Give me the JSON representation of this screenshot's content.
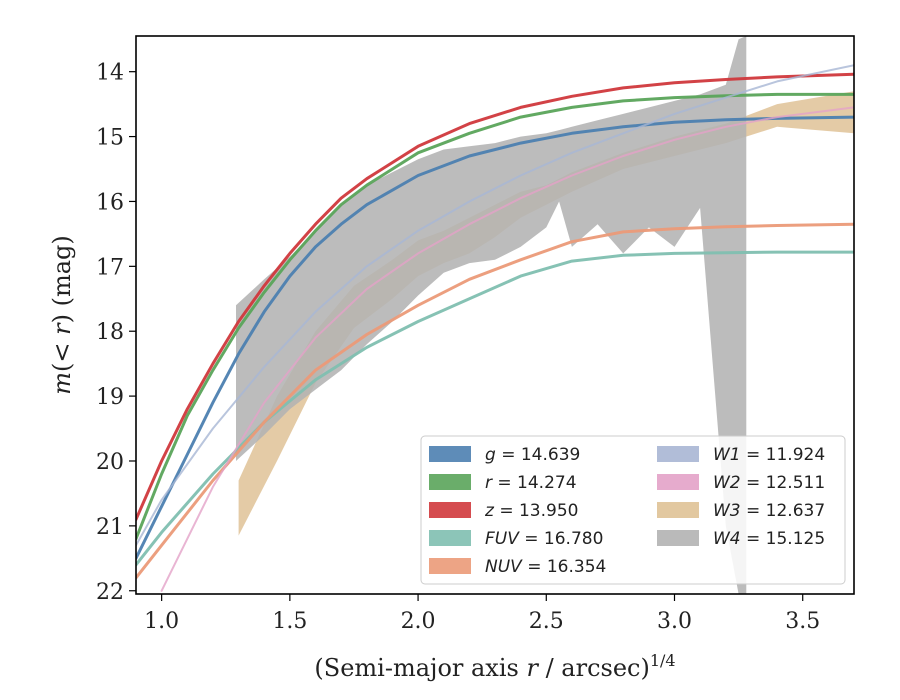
{
  "chart_data": {
    "type": "line",
    "xlabel": "(Semi-major axis r / arcsec)^1/4",
    "xlabel_parts": {
      "pre": "(Semi-major axis ",
      "var": "r",
      "post": " / arcsec)",
      "sup": "1/4"
    },
    "ylabel": "m(<r) (mag)",
    "ylabel_parts": {
      "m": "m",
      "rest": "(< ",
      "r": "r",
      "close": ") (mag)"
    },
    "xlim": [
      0.9,
      3.7
    ],
    "ylim": [
      22.05,
      13.45
    ],
    "y_inverted": true,
    "x_ticks": [
      "1.0",
      "1.5",
      "2.0",
      "2.5",
      "3.0",
      "3.5"
    ],
    "y_ticks": [
      "14",
      "15",
      "16",
      "17",
      "18",
      "19",
      "20",
      "21",
      "22"
    ],
    "grid": false,
    "legend_position": "lower-right",
    "series": [
      {
        "name": "g",
        "label_value": "14.639",
        "color": "#4c7fb0",
        "style": "line",
        "x": [
          0.9,
          1.0,
          1.1,
          1.2,
          1.3,
          1.4,
          1.5,
          1.6,
          1.7,
          1.8,
          2.0,
          2.2,
          2.4,
          2.6,
          2.8,
          3.0,
          3.2,
          3.4,
          3.7
        ],
        "y": [
          21.5,
          20.7,
          19.9,
          19.1,
          18.35,
          17.7,
          17.15,
          16.7,
          16.35,
          16.05,
          15.6,
          15.3,
          15.1,
          14.95,
          14.85,
          14.78,
          14.74,
          14.72,
          14.7
        ]
      },
      {
        "name": "r",
        "label_value": "14.274",
        "color": "#5aa45a",
        "style": "line",
        "x": [
          0.9,
          1.0,
          1.1,
          1.2,
          1.3,
          1.4,
          1.5,
          1.6,
          1.7,
          1.8,
          2.0,
          2.2,
          2.4,
          2.6,
          2.8,
          3.0,
          3.2,
          3.4,
          3.7
        ],
        "y": [
          21.2,
          20.2,
          19.3,
          18.6,
          17.95,
          17.4,
          16.9,
          16.45,
          16.05,
          15.75,
          15.25,
          14.95,
          14.7,
          14.55,
          14.45,
          14.4,
          14.37,
          14.35,
          14.35
        ]
      },
      {
        "name": "z",
        "label_value": "13.950",
        "color": "#d0383c",
        "style": "line",
        "x": [
          0.9,
          1.0,
          1.1,
          1.2,
          1.3,
          1.4,
          1.5,
          1.6,
          1.7,
          1.8,
          2.0,
          2.2,
          2.4,
          2.6,
          2.8,
          3.0,
          3.2,
          3.4,
          3.7
        ],
        "y": [
          20.9,
          20.0,
          19.2,
          18.5,
          17.85,
          17.3,
          16.8,
          16.35,
          15.95,
          15.65,
          15.15,
          14.8,
          14.55,
          14.38,
          14.25,
          14.17,
          14.12,
          14.08,
          14.04
        ]
      },
      {
        "name": "FUV",
        "label_value": "16.780",
        "color": "#7fbfb0",
        "style": "line",
        "x": [
          0.9,
          1.0,
          1.2,
          1.4,
          1.6,
          1.8,
          2.0,
          2.2,
          2.4,
          2.6,
          2.8,
          3.0,
          3.2,
          3.4,
          3.7
        ],
        "y": [
          21.6,
          21.1,
          20.2,
          19.4,
          18.75,
          18.25,
          17.85,
          17.5,
          17.15,
          16.92,
          16.83,
          16.8,
          16.79,
          16.78,
          16.78
        ]
      },
      {
        "name": "NUV",
        "label_value": "16.354",
        "color": "#eb9a78",
        "style": "line",
        "x": [
          0.9,
          1.0,
          1.2,
          1.4,
          1.6,
          1.8,
          2.0,
          2.2,
          2.4,
          2.6,
          2.8,
          3.0,
          3.2,
          3.4,
          3.7
        ],
        "y": [
          21.8,
          21.3,
          20.3,
          19.4,
          18.6,
          18.05,
          17.6,
          17.2,
          16.9,
          16.62,
          16.47,
          16.42,
          16.39,
          16.37,
          16.35
        ]
      },
      {
        "name": "W1",
        "label_value": "11.924",
        "color": "#a8b6d4",
        "style": "line",
        "x": [
          0.9,
          1.0,
          1.2,
          1.4,
          1.6,
          1.8,
          2.0,
          2.2,
          2.4,
          2.6,
          2.8,
          3.0,
          3.2,
          3.4,
          3.7
        ],
        "y": [
          21.3,
          20.6,
          19.5,
          18.55,
          17.7,
          17.0,
          16.45,
          16.0,
          15.6,
          15.25,
          14.95,
          14.65,
          14.4,
          14.15,
          13.9
        ]
      },
      {
        "name": "W2",
        "label_value": "12.511",
        "color": "#e3a2c8",
        "style": "line",
        "x": [
          1.0,
          1.2,
          1.4,
          1.6,
          1.8,
          2.0,
          2.2,
          2.4,
          2.6,
          2.8,
          3.0,
          3.2,
          3.4,
          3.7
        ],
        "y": [
          22.0,
          20.4,
          19.1,
          18.1,
          17.35,
          16.8,
          16.35,
          15.95,
          15.6,
          15.3,
          15.05,
          14.85,
          14.7,
          14.55
        ]
      },
      {
        "name": "W3",
        "label_value": "12.637",
        "color": "#dfc296",
        "style": "band",
        "x": [
          1.3,
          1.45,
          1.6,
          1.75,
          1.9,
          2.0,
          2.1,
          2.2,
          2.3,
          2.4,
          2.5,
          2.6,
          2.8,
          3.0,
          3.2,
          3.4,
          3.7
        ],
        "y_upper": [
          20.3,
          19.0,
          18.0,
          17.3,
          16.9,
          16.6,
          16.45,
          16.25,
          16.05,
          15.85,
          15.75,
          15.55,
          15.25,
          15.0,
          14.8,
          14.5,
          14.3
        ],
        "y_lower": [
          21.15,
          20.0,
          18.8,
          17.95,
          17.5,
          17.15,
          16.95,
          16.8,
          16.55,
          16.25,
          16.05,
          15.85,
          15.5,
          15.3,
          15.1,
          14.85,
          14.95
        ]
      },
      {
        "name": "W4",
        "label_value": "15.125",
        "color": "#b3b3b3",
        "style": "band",
        "x": [
          1.29,
          1.4,
          1.5,
          1.6,
          1.7,
          1.8,
          1.9,
          2.0,
          2.1,
          2.2,
          2.3,
          2.4,
          2.5,
          2.55,
          2.6,
          2.7,
          2.8,
          2.9,
          3.0,
          3.1,
          3.2,
          3.25,
          3.28
        ],
        "y_upper": [
          17.6,
          17.2,
          16.85,
          16.45,
          16.05,
          15.75,
          15.55,
          15.35,
          15.2,
          15.15,
          15.1,
          15.0,
          14.95,
          14.9,
          14.85,
          14.75,
          14.65,
          14.55,
          14.45,
          14.35,
          14.2,
          13.5,
          13.45
        ],
        "y_lower": [
          20.0,
          19.6,
          19.2,
          18.9,
          18.6,
          18.2,
          17.85,
          17.45,
          17.1,
          16.95,
          16.9,
          16.7,
          16.4,
          16.0,
          16.7,
          16.35,
          16.8,
          16.4,
          16.7,
          16.1,
          21.0,
          22.05,
          22.05
        ]
      }
    ],
    "legend": [
      [
        "g",
        "14.639"
      ],
      [
        "r",
        "14.274"
      ],
      [
        "z",
        "13.950"
      ],
      [
        "FUV",
        "16.780"
      ],
      [
        "NUV",
        "16.354"
      ],
      [
        "W1",
        "11.924"
      ],
      [
        "W2",
        "12.511"
      ],
      [
        "W3",
        "12.637"
      ],
      [
        "W4",
        "15.125"
      ]
    ]
  }
}
